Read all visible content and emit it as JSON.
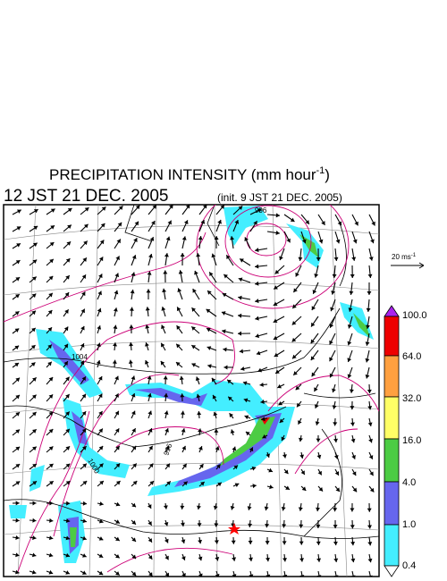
{
  "header": {
    "title_main": "PRECIPITATION INTENSITY (mm hour",
    "title_exponent": "-1",
    "title_close": ")",
    "valid_time": "12 JST 21 DEC. 2005",
    "init_time": "(init. 9 JST 21 DEC. 2005)"
  },
  "wind_scale": {
    "label_main": "20 ms",
    "label_exponent": "-1"
  },
  "colorbar": {
    "levels": [
      "100.0",
      "64.0",
      "32.0",
      "16.0",
      "4.0",
      "1.0",
      "0.4"
    ]
  },
  "map": {
    "isobar_labels": [
      "996",
      "1004",
      "1000",
      "996"
    ]
  }
}
